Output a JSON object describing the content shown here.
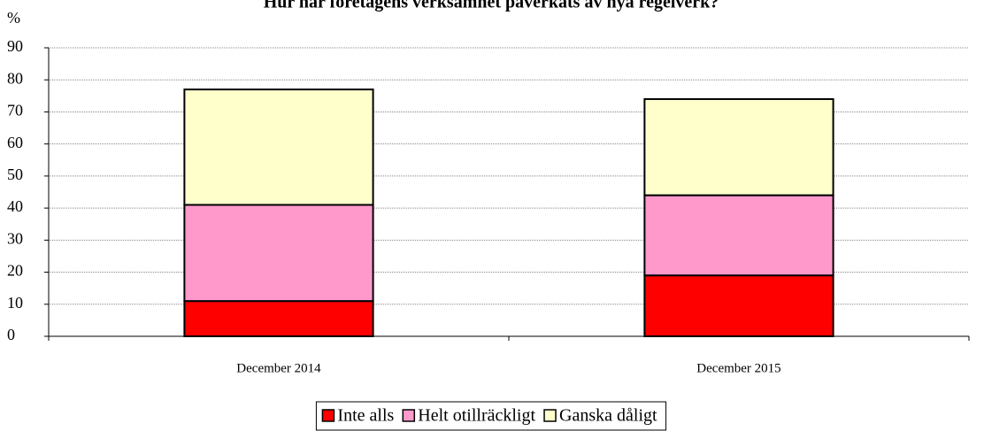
{
  "chart_data": {
    "type": "stacked_bar",
    "title": "Hur har företagens verksamhet påverkats av nya regelverk?",
    "y_label": "%",
    "categories": [
      "December 2014",
      "December 2015"
    ],
    "series": [
      {
        "name": "Inte alls",
        "color": "#ff0000",
        "values": [
          11,
          19
        ]
      },
      {
        "name": "Helt otillräckligt",
        "color": "#ff99cc",
        "values": [
          30,
          25
        ]
      },
      {
        "name": "Ganska dåligt",
        "color": "#ffffcc",
        "values": [
          36,
          30
        ]
      }
    ],
    "ylim": [
      0,
      90
    ],
    "yticks": [
      0,
      10,
      20,
      30,
      40,
      50,
      60,
      70,
      80,
      90
    ],
    "grid": true,
    "legend": "bottom"
  }
}
